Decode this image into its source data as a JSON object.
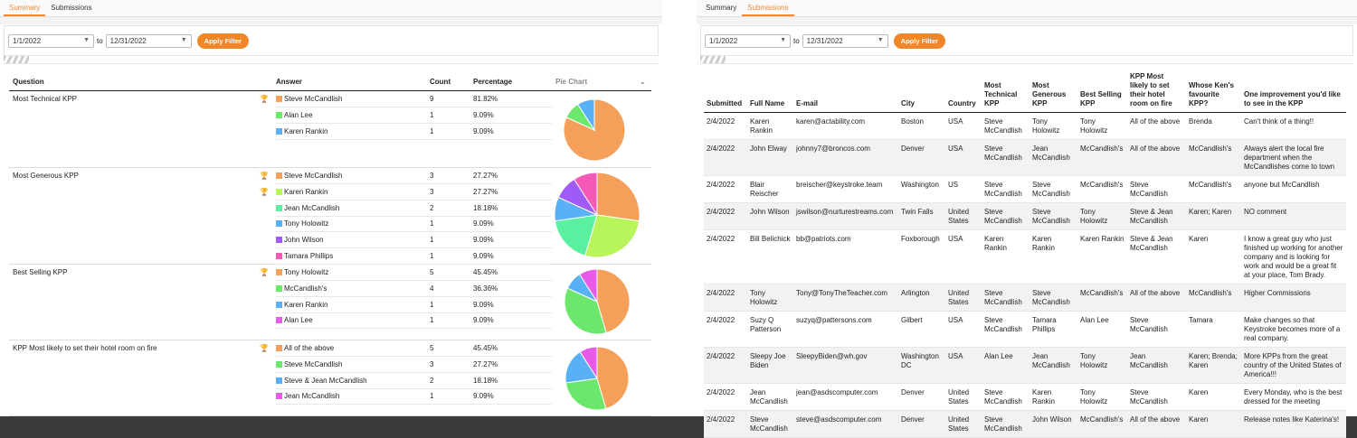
{
  "left": {
    "tabs": [
      "Summary",
      "Submissions"
    ],
    "active_tab": 0,
    "filter": {
      "from": "1/1/2022",
      "to_label": "to",
      "to": "12/31/2022",
      "button": "Apply Filter"
    },
    "headers": {
      "question": "Question",
      "answer": "Answer",
      "count": "Count",
      "percentage": "Percentage",
      "pie": "Pie Chart"
    },
    "groups": [
      {
        "question": "Most Technical KPP",
        "rows": [
          {
            "answer": "Steve McCandlish",
            "count": "9",
            "pct": "81.82%",
            "color": "#f5a05a",
            "trophy": true
          },
          {
            "answer": "Alan Lee",
            "count": "1",
            "pct": "9.09%",
            "color": "#6be86b",
            "trophy": false
          },
          {
            "answer": "Karen Rankin",
            "count": "1",
            "pct": "9.09%",
            "color": "#5ab0f5",
            "trophy": false
          }
        ]
      },
      {
        "question": "Most Generous KPP",
        "rows": [
          {
            "answer": "Steve McCandlish",
            "count": "3",
            "pct": "27.27%",
            "color": "#f5a05a",
            "trophy": true
          },
          {
            "answer": "Karen Rankin",
            "count": "3",
            "pct": "27.27%",
            "color": "#b8f55a",
            "trophy": true
          },
          {
            "answer": "Jean McCandlish",
            "count": "2",
            "pct": "18.18%",
            "color": "#5af0a0",
            "trophy": false
          },
          {
            "answer": "Tony Holowitz",
            "count": "1",
            "pct": "9.09%",
            "color": "#5ab0f5",
            "trophy": false
          },
          {
            "answer": "John Wilson",
            "count": "1",
            "pct": "9.09%",
            "color": "#a05af5",
            "trophy": false
          },
          {
            "answer": "Tamara Phillips",
            "count": "1",
            "pct": "9.09%",
            "color": "#f55ab8",
            "trophy": false
          }
        ]
      },
      {
        "question": "Best Selling KPP",
        "rows": [
          {
            "answer": "Tony Holowitz",
            "count": "5",
            "pct": "45.45%",
            "color": "#f5a05a",
            "trophy": true
          },
          {
            "answer": "McCandlish's",
            "count": "4",
            "pct": "36.36%",
            "color": "#6be86b",
            "trophy": false
          },
          {
            "answer": "Karen Rankin",
            "count": "1",
            "pct": "9.09%",
            "color": "#5ab0f5",
            "trophy": false
          },
          {
            "answer": "Alan Lee",
            "count": "1",
            "pct": "9.09%",
            "color": "#e85ae8",
            "trophy": false
          }
        ]
      },
      {
        "question": "KPP Most likely to set their hotel room on fire",
        "rows": [
          {
            "answer": "All of the above",
            "count": "5",
            "pct": "45.45%",
            "color": "#f5a05a",
            "trophy": true
          },
          {
            "answer": "Steve McCandlish",
            "count": "3",
            "pct": "27.27%",
            "color": "#6be86b",
            "trophy": false
          },
          {
            "answer": "Steve & Jean McCandlish",
            "count": "2",
            "pct": "18.18%",
            "color": "#5ab0f5",
            "trophy": false
          },
          {
            "answer": "Jean McCandlish",
            "count": "1",
            "pct": "9.09%",
            "color": "#e85ae8",
            "trophy": false
          }
        ]
      }
    ]
  },
  "right": {
    "tabs": [
      "Summary",
      "Submissions"
    ],
    "active_tab": 1,
    "filter": {
      "from": "1/1/2022",
      "to_label": "to",
      "to": "12/31/2022",
      "button": "Apply Filter"
    },
    "headers": [
      "Submitted",
      "Full Name",
      "E-mail",
      "City",
      "Country",
      "Most Technical KPP",
      "Most Generous KPP",
      "Best Selling KPP",
      "KPP Most likely to set their hotel room on fire",
      "Whose Ken's favourite KPP?",
      "One improvement you'd like to see in the KPP"
    ],
    "rows": [
      [
        "2/4/2022",
        "Karen Rankin",
        "karen@actability.com",
        "Boston",
        "USA",
        "Steve McCandlish",
        "Tony Holowitz",
        "Tony Holowitz",
        "All of the above",
        "Brenda",
        "Can't think of a thing!!"
      ],
      [
        "2/4/2022",
        "John Elway",
        "johnny7@broncos.com",
        "Denver",
        "USA",
        "Steve McCandlish",
        "Jean McCandlish",
        "McCandlish's",
        "All of the above",
        "McCandlish's",
        "Always alert the local fire department when the McCandlishes come to town"
      ],
      [
        "2/4/2022",
        "Blair Reischer",
        "breischer@keystroke.team",
        "Washington",
        "US",
        "Steve McCandlish",
        "Steve McCandlish",
        "McCandlish's",
        "Steve McCandlish",
        "McCandlish's",
        "anyone but McCandlish"
      ],
      [
        "2/4/2022",
        "John Wilson",
        "jswilson@nurturestreams.com",
        "Twin Falls",
        "United States",
        "Steve McCandlish",
        "Steve McCandlish",
        "Tony Holowitz",
        "Steve & Jean McCandlish",
        "Karen; Karen",
        "NO comment"
      ],
      [
        "2/4/2022",
        "Bill Belichick",
        "bb@patriots.com",
        "Foxborough",
        "USA",
        "Karen Rankin",
        "Karen Rankin",
        "Karen Rankin",
        "Steve & Jean McCandlish",
        "Karen",
        "I know a great guy who just finished up working for another company and is looking for work and would be a great fit at your place, Tom Brady."
      ],
      [
        "2/4/2022",
        "Tony Holowitz",
        "Tony@TonyTheTeacher.com",
        "Arlington",
        "United States",
        "Steve McCandlish",
        "Steve McCandlish",
        "McCandlish's",
        "All of the above",
        "McCandlish's",
        "Higher Commissions"
      ],
      [
        "2/4/2022",
        "Suzy Q Patterson",
        "suzyq@pattersons.com",
        "Gilbert",
        "USA",
        "Steve McCandlish",
        "Tamara Phillips",
        "Alan Lee",
        "Steve McCandlish",
        "Tamara",
        "Make changes so that Keystroke becomes more of a real company."
      ],
      [
        "2/4/2022",
        "Sleepy Joe Biden",
        "SleepyBiden@wh.gov",
        "Washington DC",
        "USA",
        "Alan Lee",
        "Jean McCandlish",
        "Tony Holowitz",
        "Jean McCandlish",
        "Karen; Brenda; Karen",
        "More KPPs from the great country of the United States of America!!!"
      ],
      [
        "2/4/2022",
        "Jean McCandlish",
        "jean@asdscomputer.com",
        "Denver",
        "United States",
        "Steve McCandlish",
        "Karen Rankin",
        "Tony Holowitz",
        "Steve McCandlish",
        "Karen",
        "Every Monday, who is the best dressed for the meeting"
      ],
      [
        "2/4/2022",
        "Steve McCandlish",
        "steve@asdscomputer.com",
        "Denver",
        "United States",
        "Steve McCandlish",
        "John Wilson",
        "McCandlish's",
        "All of the above",
        "Karen",
        "Release notes like Katerina's!"
      ]
    ]
  }
}
